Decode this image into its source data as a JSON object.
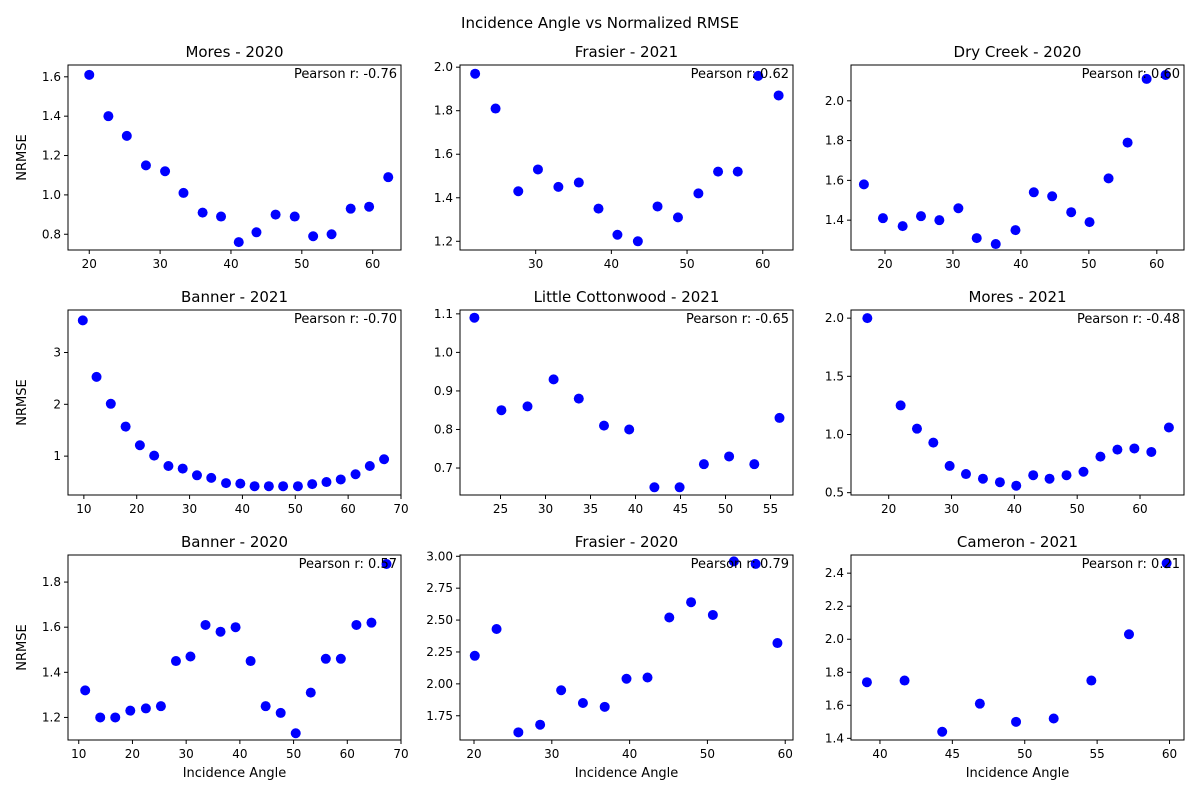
{
  "figure": {
    "suptitle": "Incidence Angle vs Normalized RMSE"
  },
  "colors": {
    "marker": "#0000ff",
    "axes": "#000000"
  },
  "chart_data": [
    {
      "type": "scatter",
      "title": "Mores - 2020",
      "annotation": "Pearson r: -0.76",
      "xlabel": "",
      "ylabel": "NRMSE",
      "xlim": [
        17,
        64
      ],
      "ylim": [
        0.72,
        1.66
      ],
      "xticks": [
        20,
        30,
        40,
        50,
        60
      ],
      "yticks": [
        0.8,
        1.0,
        1.2,
        1.4,
        1.6
      ],
      "xtick_labels": [
        "20",
        "30",
        "40",
        "50",
        "60"
      ],
      "ytick_labels": [
        "0.8",
        "1.0",
        "1.2",
        "1.4",
        "1.6"
      ],
      "x": [
        20.0,
        22.7,
        25.3,
        28.0,
        30.7,
        33.3,
        36.0,
        38.6,
        41.1,
        43.6,
        46.3,
        49.0,
        51.6,
        54.2,
        56.9,
        59.5,
        62.2
      ],
      "y": [
        1.61,
        1.4,
        1.3,
        1.15,
        1.12,
        1.01,
        0.91,
        0.89,
        0.76,
        0.81,
        0.9,
        0.89,
        0.79,
        0.8,
        0.93,
        0.94,
        1.09
      ]
    },
    {
      "type": "scatter",
      "title": "Frasier - 2021",
      "annotation": "Pearson r: 0.62",
      "xlabel": "",
      "ylabel": "",
      "xlim": [
        20,
        64
      ],
      "ylim": [
        1.16,
        2.01
      ],
      "xticks": [
        30,
        40,
        50,
        60
      ],
      "yticks": [
        1.2,
        1.4,
        1.6,
        1.8,
        2.0
      ],
      "xtick_labels": [
        "30",
        "40",
        "50",
        "60"
      ],
      "ytick_labels": [
        "1.2",
        "1.4",
        "1.6",
        "1.8",
        "2.0"
      ],
      "x": [
        22.0,
        24.7,
        27.7,
        30.3,
        33.0,
        35.7,
        38.3,
        40.8,
        43.5,
        46.1,
        48.8,
        51.5,
        54.1,
        56.7,
        59.4,
        62.1
      ],
      "y": [
        1.97,
        1.81,
        1.43,
        1.53,
        1.45,
        1.47,
        1.35,
        1.23,
        1.2,
        1.36,
        1.31,
        1.42,
        1.52,
        1.52,
        1.96,
        1.87
      ]
    },
    {
      "type": "scatter",
      "title": "Dry Creek - 2020",
      "annotation": "Pearson r: 0.60",
      "xlabel": "",
      "ylabel": "",
      "xlim": [
        15,
        64
      ],
      "ylim": [
        1.25,
        2.18
      ],
      "xticks": [
        20,
        30,
        40,
        50,
        60
      ],
      "yticks": [
        1.4,
        1.6,
        1.8,
        2.0
      ],
      "xtick_labels": [
        "20",
        "30",
        "40",
        "50",
        "60"
      ],
      "ytick_labels": [
        "1.4",
        "1.6",
        "1.8",
        "2.0"
      ],
      "x": [
        16.9,
        19.7,
        22.6,
        25.3,
        28.0,
        30.8,
        33.5,
        36.3,
        39.2,
        41.9,
        44.6,
        47.4,
        50.1,
        52.9,
        55.7,
        58.5,
        61.3
      ],
      "y": [
        1.58,
        1.41,
        1.37,
        1.42,
        1.4,
        1.46,
        1.31,
        1.28,
        1.35,
        1.54,
        1.52,
        1.44,
        1.39,
        1.61,
        1.79,
        2.11,
        2.13
      ]
    },
    {
      "type": "scatter",
      "title": "Banner - 2021",
      "annotation": "Pearson r: -0.70",
      "xlabel": "",
      "ylabel": "NRMSE",
      "xlim": [
        7,
        70
      ],
      "ylim": [
        0.25,
        3.82
      ],
      "xticks": [
        10,
        20,
        30,
        40,
        50,
        60,
        70
      ],
      "yticks": [
        1,
        2,
        3
      ],
      "xtick_labels": [
        "10",
        "20",
        "30",
        "40",
        "50",
        "60",
        "70"
      ],
      "ytick_labels": [
        "1",
        "2",
        "3"
      ],
      "x": [
        9.8,
        12.4,
        15.1,
        17.9,
        20.6,
        23.3,
        26.0,
        28.7,
        31.4,
        34.1,
        36.9,
        39.6,
        42.3,
        45.0,
        47.7,
        50.5,
        53.2,
        55.9,
        58.6,
        61.4,
        64.1,
        66.8
      ],
      "y": [
        3.62,
        2.53,
        2.01,
        1.57,
        1.21,
        1.01,
        0.81,
        0.76,
        0.63,
        0.58,
        0.48,
        0.47,
        0.42,
        0.42,
        0.42,
        0.42,
        0.46,
        0.5,
        0.55,
        0.65,
        0.81,
        0.94
      ]
    },
    {
      "type": "scatter",
      "title": "Little Cottonwood - 2021",
      "annotation": "Pearson r: -0.65",
      "xlabel": "",
      "ylabel": "",
      "xlim": [
        20.5,
        57.5
      ],
      "ylim": [
        0.63,
        1.11
      ],
      "xticks": [
        25,
        30,
        35,
        40,
        45,
        50,
        55
      ],
      "yticks": [
        0.7,
        0.8,
        0.9,
        1.0,
        1.1
      ],
      "xtick_labels": [
        "25",
        "30",
        "35",
        "40",
        "45",
        "50",
        "55"
      ],
      "ytick_labels": [
        "0.7",
        "0.8",
        "0.9",
        "1.0",
        "1.1"
      ],
      "x": [
        22.1,
        25.1,
        28.0,
        30.9,
        33.7,
        36.5,
        39.3,
        42.1,
        44.9,
        47.6,
        50.4,
        53.2,
        56.0
      ],
      "y": [
        1.09,
        0.85,
        0.86,
        0.93,
        0.88,
        0.81,
        0.8,
        0.65,
        0.65,
        0.71,
        0.73,
        0.71,
        0.83
      ]
    },
    {
      "type": "scatter",
      "title": "Mores - 2021",
      "annotation": "Pearson r: -0.48",
      "xlabel": "",
      "ylabel": "",
      "xlim": [
        14,
        67
      ],
      "ylim": [
        0.48,
        2.07
      ],
      "xticks": [
        20,
        30,
        40,
        50,
        60
      ],
      "yticks": [
        0.5,
        1.0,
        1.5,
        2.0
      ],
      "xtick_labels": [
        "20",
        "30",
        "40",
        "50",
        "60"
      ],
      "ytick_labels": [
        "0.5",
        "1.0",
        "1.5",
        "2.0"
      ],
      "x": [
        16.6,
        21.9,
        24.5,
        27.1,
        29.7,
        32.3,
        35.0,
        37.7,
        40.3,
        43.0,
        45.6,
        48.3,
        51.0,
        53.7,
        56.4,
        59.1,
        61.8,
        64.6
      ],
      "y": [
        2.0,
        1.25,
        1.05,
        0.93,
        0.73,
        0.66,
        0.62,
        0.59,
        0.56,
        0.65,
        0.62,
        0.65,
        0.68,
        0.81,
        0.87,
        0.88,
        0.85,
        1.06
      ]
    },
    {
      "type": "scatter",
      "title": "Banner - 2020",
      "annotation": "Pearson r: 0.57",
      "xlabel": "Incidence Angle",
      "ylabel": "NRMSE",
      "xlim": [
        8,
        70
      ],
      "ylim": [
        1.1,
        1.92
      ],
      "xticks": [
        10,
        20,
        30,
        40,
        50,
        60,
        70
      ],
      "yticks": [
        1.2,
        1.4,
        1.6,
        1.8
      ],
      "xtick_labels": [
        "10",
        "20",
        "30",
        "40",
        "50",
        "60",
        "70"
      ],
      "ytick_labels": [
        "1.2",
        "1.4",
        "1.6",
        "1.8"
      ],
      "x": [
        11.2,
        14.0,
        16.8,
        19.6,
        22.5,
        25.3,
        28.1,
        30.8,
        33.6,
        36.4,
        39.2,
        42.0,
        44.8,
        47.6,
        50.4,
        53.2,
        56.0,
        58.8,
        61.7,
        64.5,
        67.3
      ],
      "y": [
        1.32,
        1.2,
        1.2,
        1.23,
        1.24,
        1.25,
        1.45,
        1.47,
        1.61,
        1.58,
        1.6,
        1.45,
        1.25,
        1.22,
        1.13,
        1.31,
        1.46,
        1.46,
        1.61,
        1.62,
        1.88
      ]
    },
    {
      "type": "scatter",
      "title": "Frasier - 2020",
      "annotation": "Pearson r: 0.79",
      "xlabel": "Incidence Angle",
      "ylabel": "",
      "xlim": [
        18.2,
        61
      ],
      "ylim": [
        1.56,
        3.01
      ],
      "xticks": [
        20,
        30,
        40,
        50,
        60
      ],
      "yticks": [
        1.75,
        2.0,
        2.25,
        2.5,
        2.75,
        3.0
      ],
      "xtick_labels": [
        "20",
        "30",
        "40",
        "50",
        "60"
      ],
      "ytick_labels": [
        "1.75",
        "2.00",
        "2.25",
        "2.50",
        "2.75",
        "3.00"
      ],
      "x": [
        20.1,
        22.9,
        25.7,
        28.5,
        31.2,
        34.0,
        36.8,
        39.6,
        42.3,
        45.1,
        47.9,
        50.7,
        53.4,
        56.2,
        59.0
      ],
      "y": [
        2.22,
        2.43,
        1.62,
        1.68,
        1.95,
        1.85,
        1.82,
        2.04,
        2.05,
        2.52,
        2.64,
        2.54,
        2.96,
        2.94,
        2.32
      ]
    },
    {
      "type": "scatter",
      "title": "Cameron - 2021",
      "annotation": "Pearson r: 0.21",
      "xlabel": "Incidence Angle",
      "ylabel": "",
      "xlim": [
        38,
        61
      ],
      "ylim": [
        1.39,
        2.51
      ],
      "xticks": [
        40,
        45,
        50,
        55,
        60
      ],
      "yticks": [
        1.4,
        1.6,
        1.8,
        2.0,
        2.2,
        2.4
      ],
      "xtick_labels": [
        "40",
        "45",
        "50",
        "55",
        "60"
      ],
      "ytick_labels": [
        "1.4",
        "1.6",
        "1.8",
        "2.0",
        "2.2",
        "2.4"
      ],
      "x": [
        39.1,
        41.7,
        44.3,
        46.9,
        49.4,
        52.0,
        54.6,
        57.2,
        59.8
      ],
      "y": [
        1.74,
        1.75,
        1.44,
        1.61,
        1.5,
        1.52,
        1.75,
        2.03,
        2.46
      ]
    }
  ]
}
